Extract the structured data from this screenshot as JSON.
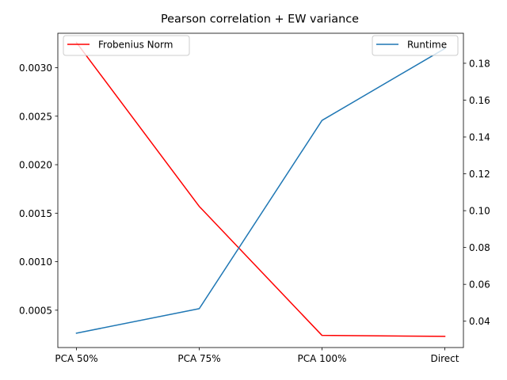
{
  "chart_data": {
    "type": "line",
    "title": "Pearson correlation + EW variance",
    "xlabel": "",
    "categories": [
      "PCA 50%",
      "PCA 75%",
      "PCA 100%",
      "Direct"
    ],
    "y_left": {
      "label": "",
      "ylim": [
        0.000115,
        0.003355
      ],
      "ticks": [
        0.0005,
        0.001,
        0.0015,
        0.002,
        0.0025,
        0.003
      ],
      "tick_labels": [
        "0.0005",
        "0.0010",
        "0.0015",
        "0.0020",
        "0.0025",
        "0.0030"
      ]
    },
    "y_right": {
      "label": "",
      "ylim": [
        0.0257,
        0.1963
      ],
      "ticks": [
        0.04,
        0.06,
        0.08,
        0.1,
        0.12,
        0.14,
        0.16,
        0.18
      ],
      "tick_labels": [
        "0.04",
        "0.06",
        "0.08",
        "0.10",
        "0.12",
        "0.14",
        "0.16",
        "0.18"
      ]
    },
    "series": [
      {
        "name": "Frobenius Norm",
        "axis": "left",
        "color": "#ff0000",
        "values": [
          0.00326,
          0.00157,
          0.00024,
          0.00023
        ]
      },
      {
        "name": "Runtime",
        "axis": "right",
        "color": "#1f77b4",
        "values": [
          0.0335,
          0.0468,
          0.149,
          0.188
        ]
      }
    ],
    "legends": [
      {
        "position": "upper-left",
        "entries": [
          "Frobenius Norm"
        ]
      },
      {
        "position": "upper-right",
        "entries": [
          "Runtime"
        ]
      }
    ],
    "grid": false
  }
}
